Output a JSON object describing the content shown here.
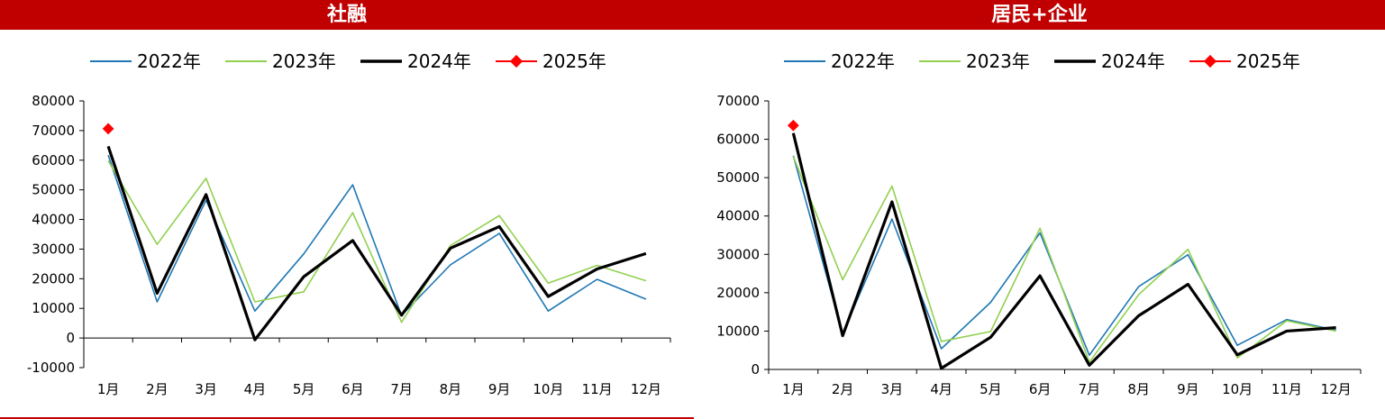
{
  "colors": {
    "title_bg": "#c00000",
    "title_text": "#ffffff",
    "s2022": "#1f77b4",
    "s2023": "#92d050",
    "s2024": "#000000",
    "s2025": "#ff0000"
  },
  "chart_data": [
    {
      "type": "line",
      "title": "社融",
      "categories": [
        "1月",
        "2月",
        "3月",
        "4月",
        "5月",
        "6月",
        "7月",
        "8月",
        "9月",
        "10月",
        "11月",
        "12月"
      ],
      "ylim": [
        -10000,
        80000
      ],
      "yticks": [
        -10000,
        0,
        10000,
        20000,
        30000,
        40000,
        50000,
        60000,
        70000,
        80000
      ],
      "legend_position": "top",
      "grid": false,
      "series": [
        {
          "name": "2022年",
          "values": [
            61700,
            12200,
            46500,
            9100,
            28400,
            51700,
            7600,
            24700,
            35300,
            9100,
            19800,
            13100
          ]
        },
        {
          "name": "2023年",
          "values": [
            59800,
            31600,
            53900,
            12200,
            15600,
            42300,
            5300,
            31200,
            41300,
            18500,
            24500,
            19300
          ]
        },
        {
          "name": "2024年",
          "values": [
            64700,
            15100,
            48400,
            -600,
            20700,
            32900,
            7700,
            30300,
            37600,
            14000,
            23300,
            28500
          ]
        },
        {
          "name": "2025年",
          "values": [
            70600,
            null,
            null,
            null,
            null,
            null,
            null,
            null,
            null,
            null,
            null,
            null
          ]
        }
      ]
    },
    {
      "type": "line",
      "title": "居民+企业",
      "categories": [
        "1月",
        "2月",
        "3月",
        "4月",
        "5月",
        "6月",
        "7月",
        "8月",
        "9月",
        "10月",
        "11月",
        "12月"
      ],
      "ylim": [
        0,
        70000
      ],
      "yticks": [
        0,
        10000,
        20000,
        30000,
        40000,
        50000,
        60000,
        70000
      ],
      "legend_position": "top",
      "grid": false,
      "series": [
        {
          "name": "2022年",
          "values": [
            55700,
            9300,
            39200,
            5400,
            17500,
            35600,
            3700,
            21600,
            29900,
            6300,
            13000,
            10200
          ]
        },
        {
          "name": "2023年",
          "values": [
            55500,
            23400,
            47800,
            7300,
            9900,
            36800,
            1900,
            19500,
            31300,
            3000,
            12700,
            10000
          ]
        },
        {
          "name": "2024年",
          "values": [
            61600,
            8800,
            43700,
            300,
            8400,
            24400,
            1100,
            14000,
            22200,
            3800,
            10000,
            10900
          ]
        },
        {
          "name": "2025年",
          "values": [
            63600,
            null,
            null,
            null,
            null,
            null,
            null,
            null,
            null,
            null,
            null,
            null
          ]
        }
      ]
    }
  ]
}
